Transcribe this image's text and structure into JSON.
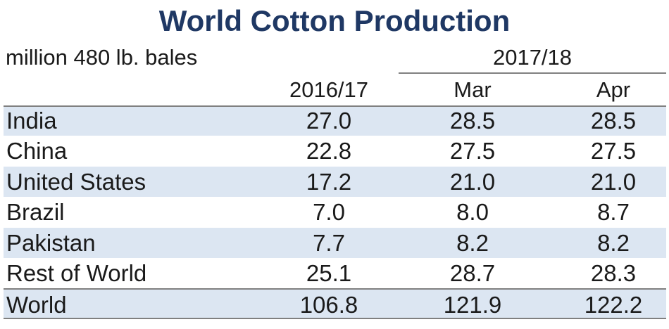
{
  "chart_data": {
    "type": "table",
    "title": "World Cotton Production",
    "unit_label": "million 480 lb. bales",
    "group_header": "2017/18",
    "columns": [
      "2016/17",
      "Mar",
      "Apr"
    ],
    "rows": [
      {
        "name": "India",
        "values": [
          "27.0",
          "28.5",
          "28.5"
        ]
      },
      {
        "name": "China",
        "values": [
          "22.8",
          "27.5",
          "27.5"
        ]
      },
      {
        "name": "United States",
        "values": [
          "17.2",
          "21.0",
          "21.0"
        ]
      },
      {
        "name": "Brazil",
        "values": [
          "7.0",
          "8.0",
          "8.7"
        ]
      },
      {
        "name": "Pakistan",
        "values": [
          "7.7",
          "8.2",
          "8.2"
        ]
      },
      {
        "name": "Rest of World",
        "values": [
          "25.1",
          "28.7",
          "28.3"
        ]
      },
      {
        "name": "World",
        "values": [
          "106.8",
          "121.9",
          "122.2"
        ]
      }
    ]
  },
  "colors": {
    "title": "#1f3864",
    "row_shade": "#dce6f2",
    "rule": "#808080"
  }
}
